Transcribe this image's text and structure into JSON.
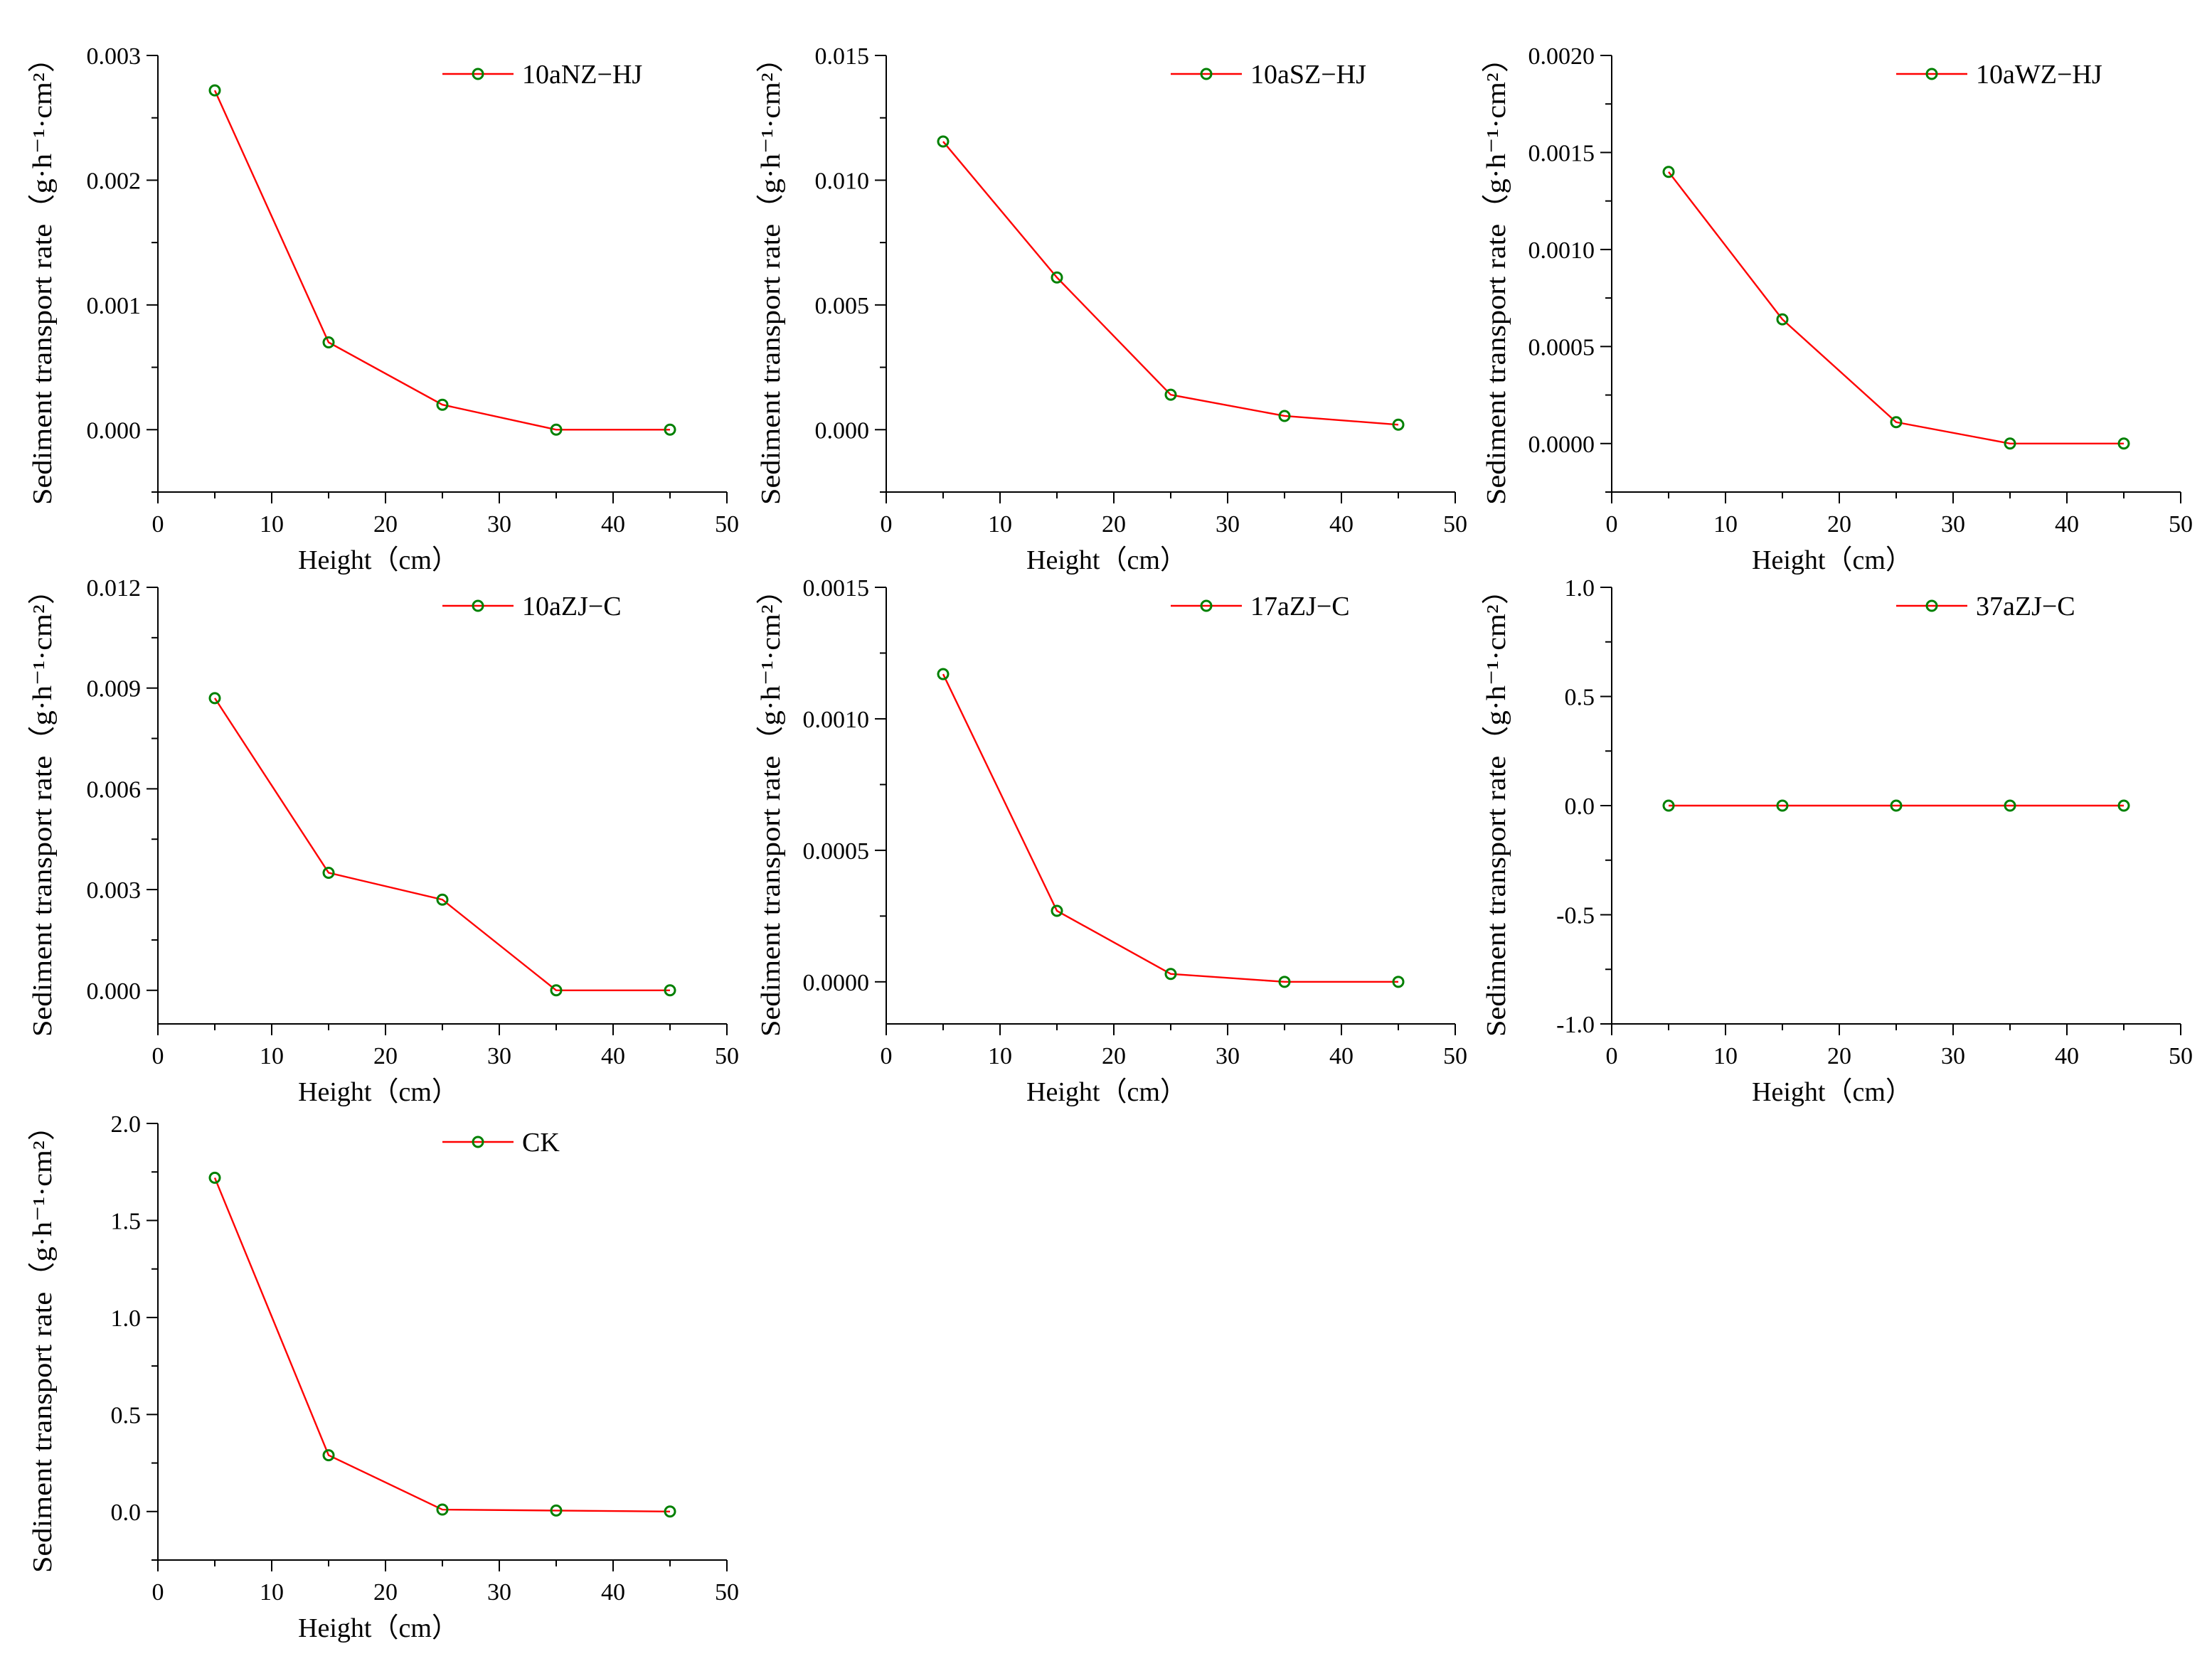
{
  "figure": {
    "line_color": "#ff0000",
    "marker_color": "#008000",
    "legend_placement": "top-right"
  },
  "chart_data": [
    {
      "type": "line",
      "legend": "10aNZ−HJ",
      "xlabel": "Height（cm）",
      "ylabel": "Sediment transport rate（g·h⁻¹·cm²）",
      "x": [
        5,
        15,
        25,
        35,
        45
      ],
      "y": [
        0.00272,
        0.0007,
        0.0002,
        0.0,
        0.0
      ],
      "xlim": [
        0,
        50
      ],
      "ylim": [
        -0.0005,
        0.003
      ],
      "xticks": [
        0,
        10,
        20,
        30,
        40,
        50
      ],
      "xtick_labels": [
        "0",
        "10",
        "20",
        "30",
        "40",
        "50"
      ],
      "yticks": [
        0.0,
        0.001,
        0.002,
        0.003
      ],
      "ytick_labels": [
        "0.000",
        "0.001",
        "0.002",
        "0.003"
      ]
    },
    {
      "type": "line",
      "legend": "10aSZ−HJ",
      "xlabel": "Height（cm）",
      "ylabel": "Sediment transport rate（g·h⁻¹·cm²）",
      "x": [
        5,
        15,
        25,
        35,
        45
      ],
      "y": [
        0.01155,
        0.0061,
        0.0014,
        0.00055,
        0.0002
      ],
      "xlim": [
        0,
        50
      ],
      "ylim": [
        -0.0025,
        0.015
      ],
      "xticks": [
        0,
        10,
        20,
        30,
        40,
        50
      ],
      "xtick_labels": [
        "0",
        "10",
        "20",
        "30",
        "40",
        "50"
      ],
      "yticks": [
        0.0,
        0.005,
        0.01,
        0.015
      ],
      "ytick_labels": [
        "0.000",
        "0.005",
        "0.010",
        "0.015"
      ]
    },
    {
      "type": "line",
      "legend": "10aWZ−HJ",
      "xlabel": "Height（cm）",
      "ylabel": "Sediment transport rate（g·h⁻¹·cm²）",
      "x": [
        5,
        15,
        25,
        35,
        45
      ],
      "y": [
        0.0014,
        0.00064,
        0.00011,
        0.0,
        0.0
      ],
      "xlim": [
        0,
        50
      ],
      "ylim": [
        -0.00025,
        0.002
      ],
      "xticks": [
        0,
        10,
        20,
        30,
        40,
        50
      ],
      "xtick_labels": [
        "0",
        "10",
        "20",
        "30",
        "40",
        "50"
      ],
      "yticks": [
        0.0,
        0.0005,
        0.001,
        0.0015,
        0.002
      ],
      "ytick_labels": [
        "0.0000",
        "0.0005",
        "0.0010",
        "0.0015",
        "0.0020"
      ]
    },
    {
      "type": "line",
      "legend": "10aZJ−C",
      "xlabel": "Height（cm）",
      "ylabel": "Sediment transport rate（g·h⁻¹·cm²）",
      "x": [
        5,
        15,
        25,
        35,
        45
      ],
      "y": [
        0.0087,
        0.0035,
        0.0027,
        0.0,
        0.0
      ],
      "xlim": [
        0,
        50
      ],
      "ylim": [
        -0.001,
        0.012
      ],
      "xticks": [
        0,
        10,
        20,
        30,
        40,
        50
      ],
      "xtick_labels": [
        "0",
        "10",
        "20",
        "30",
        "40",
        "50"
      ],
      "yticks": [
        0.0,
        0.003,
        0.006,
        0.009,
        0.012
      ],
      "ytick_labels": [
        "0.000",
        "0.003",
        "0.006",
        "0.009",
        "0.012"
      ]
    },
    {
      "type": "line",
      "legend": "17aZJ−C",
      "xlabel": "Height（cm）",
      "ylabel": "Sediment transport rate（g·h⁻¹·cm²）",
      "x": [
        5,
        15,
        25,
        35,
        45
      ],
      "y": [
        0.00117,
        0.00027,
        3e-05,
        0.0,
        0.0
      ],
      "xlim": [
        0,
        50
      ],
      "ylim": [
        -0.00016,
        0.0015
      ],
      "xticks": [
        0,
        10,
        20,
        30,
        40,
        50
      ],
      "xtick_labels": [
        "0",
        "10",
        "20",
        "30",
        "40",
        "50"
      ],
      "yticks": [
        0.0,
        0.0005,
        0.001,
        0.0015
      ],
      "ytick_labels": [
        "0.0000",
        "0.0005",
        "0.0010",
        "0.0015"
      ]
    },
    {
      "type": "line",
      "legend": "37aZJ−C",
      "xlabel": "Height（cm）",
      "ylabel": "Sediment transport rate（g·h⁻¹·cm²）",
      "x": [
        5,
        15,
        25,
        35,
        45
      ],
      "y": [
        0.0,
        0.0,
        0.0,
        0.0,
        0.0
      ],
      "xlim": [
        0,
        50
      ],
      "ylim": [
        -1.0,
        1.0
      ],
      "xticks": [
        0,
        10,
        20,
        30,
        40,
        50
      ],
      "xtick_labels": [
        "0",
        "10",
        "20",
        "30",
        "40",
        "50"
      ],
      "yticks": [
        -1.0,
        -0.5,
        0.0,
        0.5,
        1.0
      ],
      "ytick_labels": [
        "-1.0",
        "-0.5",
        "0.0",
        "0.5",
        "1.0"
      ]
    },
    {
      "type": "line",
      "legend": "CK",
      "xlabel": "Height（cm）",
      "ylabel": "Sediment transport rate（g·h⁻¹·cm²）",
      "x": [
        5,
        15,
        25,
        35,
        45
      ],
      "y": [
        1.72,
        0.29,
        0.01,
        0.005,
        0.0
      ],
      "xlim": [
        0,
        50
      ],
      "ylim": [
        -0.25,
        2.0
      ],
      "xticks": [
        0,
        10,
        20,
        30,
        40,
        50
      ],
      "xtick_labels": [
        "0",
        "10",
        "20",
        "30",
        "40",
        "50"
      ],
      "yticks": [
        0.0,
        0.5,
        1.0,
        1.5,
        2.0
      ],
      "ytick_labels": [
        "0.0",
        "0.5",
        "1.0",
        "1.5",
        "2.0"
      ]
    }
  ]
}
